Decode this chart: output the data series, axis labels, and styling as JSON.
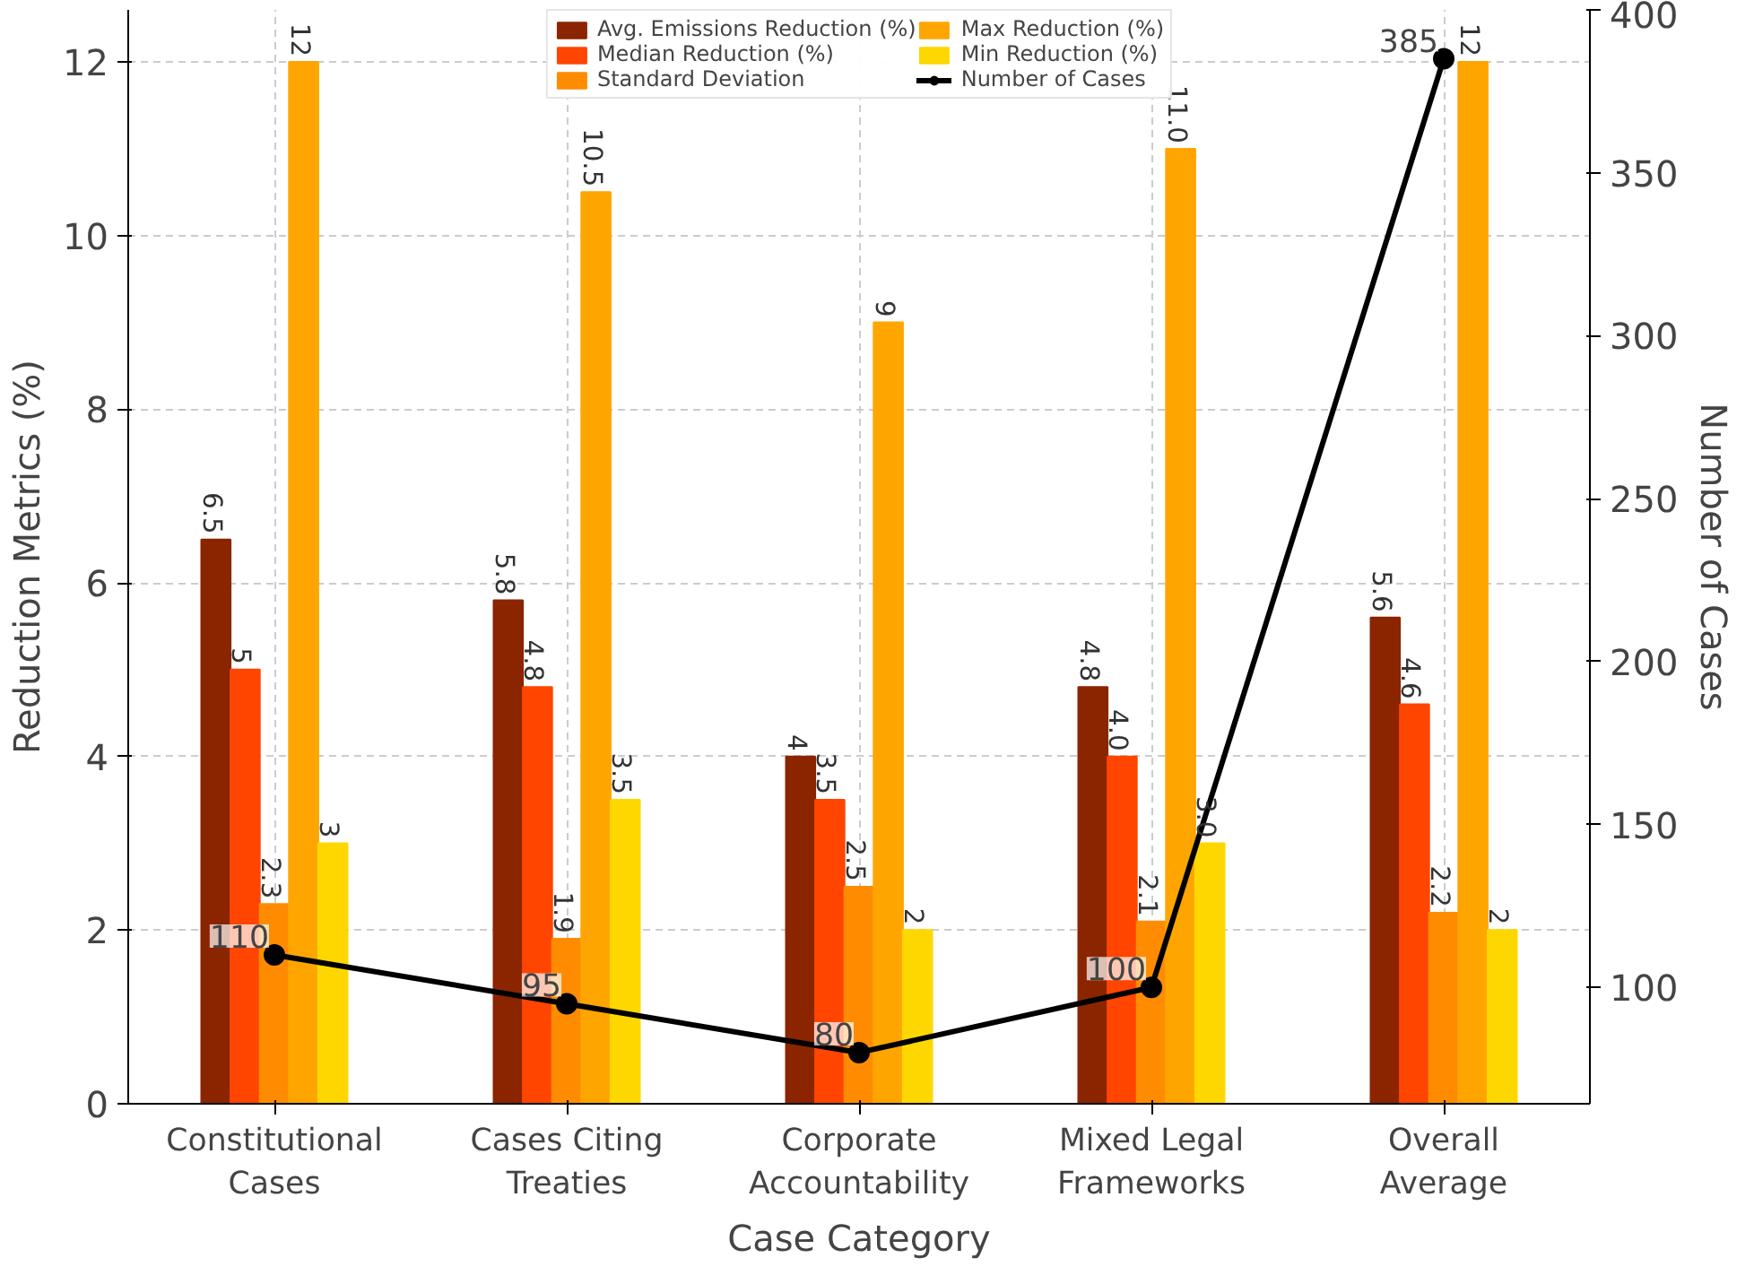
{
  "chart_data": {
    "type": "bar",
    "xlabel": "Case Category",
    "ylabel": "Reduction Metrics (%)",
    "y2label": "Number of Cases",
    "categories": [
      "Constitutional\nCases",
      "Cases Citing\nTreaties",
      "Corporate\nAccountability",
      "Mixed Legal\nFrameworks",
      "Overall\nAverage"
    ],
    "series": [
      {
        "name": "Avg. Emissions Reduction (%)",
        "color": "#8b2500",
        "values": [
          6.5,
          5.8,
          4,
          4.8,
          5.6
        ],
        "value_labels": [
          "6.5",
          "5.8",
          "4",
          "4.8",
          "5.6"
        ]
      },
      {
        "name": "Median Reduction (%)",
        "color": "#ff4500",
        "values": [
          5,
          4.8,
          3.5,
          4,
          4.6
        ],
        "value_labels": [
          "5",
          "4.8",
          "3.5",
          "4.0",
          "4.6"
        ]
      },
      {
        "name": "Standard Deviation",
        "color": "#ff8c00",
        "values": [
          2.3,
          1.9,
          2.5,
          2.1,
          2.2
        ],
        "value_labels": [
          "2.3",
          "1.9",
          "2.5",
          "2.1",
          "2.2"
        ]
      },
      {
        "name": "Max Reduction (%)",
        "color": "#ffa500",
        "values": [
          12,
          10.5,
          9,
          11,
          12
        ],
        "value_labels": [
          "12",
          "10.5",
          "9",
          "11.0",
          "12"
        ]
      },
      {
        "name": "Min Reduction (%)",
        "color": "#ffd700",
        "values": [
          3,
          3.5,
          2,
          3,
          2
        ],
        "value_labels": [
          "3",
          "3.5",
          "2",
          "3.0",
          "2"
        ]
      },
      {
        "name": "Number of Cases",
        "type": "line",
        "axis": "y2",
        "color": "#000000",
        "marker": "circle",
        "values": [
          110,
          95,
          80,
          100,
          385
        ],
        "value_labels": [
          "110",
          "95",
          "80",
          "100",
          "385"
        ]
      }
    ],
    "ylim": [
      0,
      12.6
    ],
    "yticks": [
      0,
      2,
      4,
      6,
      8,
      10,
      12
    ],
    "y2lim": [
      64.3,
      400
    ],
    "y2ticks": [
      100,
      150,
      200,
      250,
      300,
      350,
      400
    ],
    "grid": true,
    "legend": "top"
  }
}
